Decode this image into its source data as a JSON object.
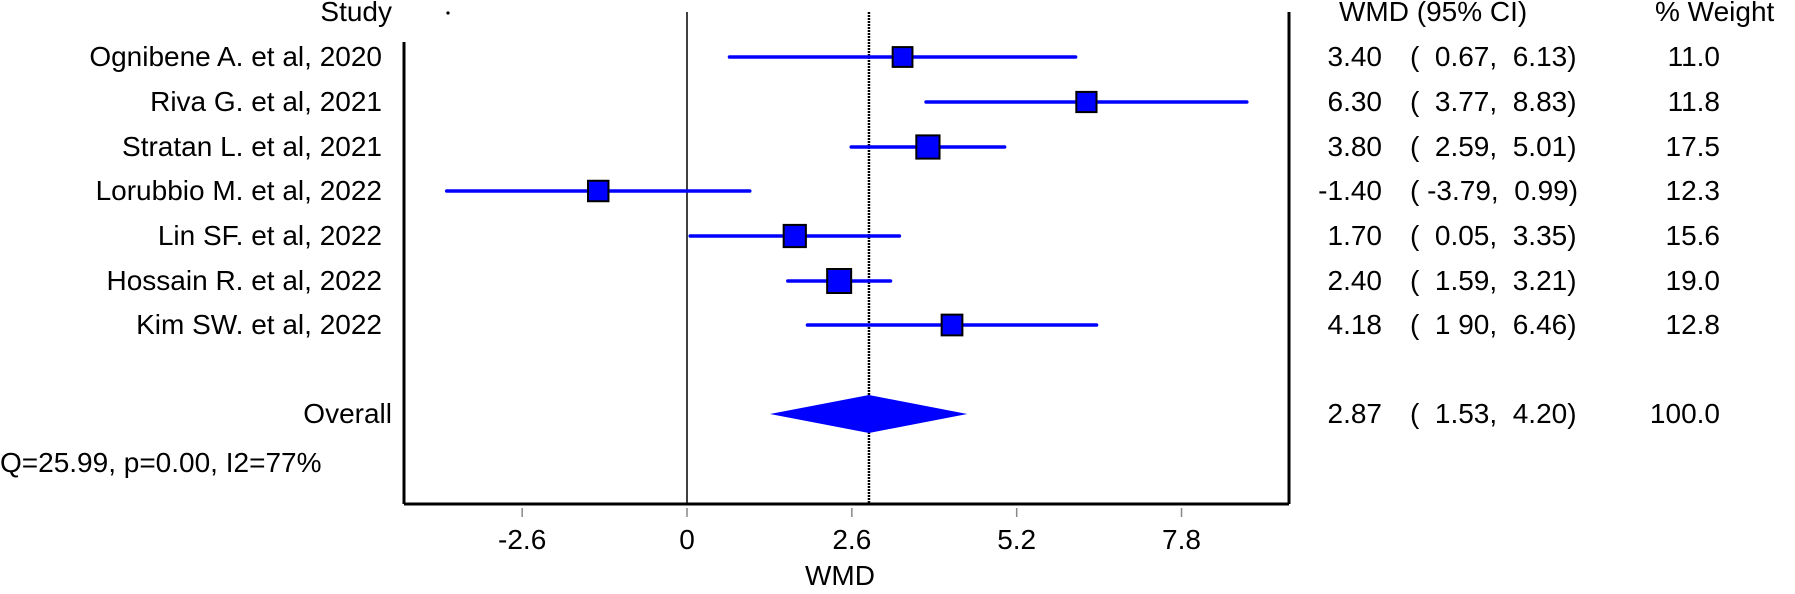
{
  "chart_data": {
    "type": "forest",
    "title": "",
    "xlabel": "WMD",
    "ylabel": "",
    "xlim": [
      -3.9,
      9.1
    ],
    "xticks": [
      -2.6,
      0,
      2.6,
      5.2,
      7.8
    ],
    "xtick_labels": [
      "-2.6",
      "0",
      "2.6",
      "5.2",
      "7.8"
    ],
    "null_line": 0,
    "overall_line": 2.87,
    "columns": {
      "study": "Study",
      "effect": "WMD (95% CI)",
      "weight": "% Weight"
    },
    "studies": [
      {
        "name": "Ognibene A. et al, 2020",
        "wmd": 3.4,
        "lo": 0.67,
        "hi": 6.13,
        "weight": 11.0,
        "wmd_text": "3.40",
        "ci_text": "(  0.67,  6.13)",
        "weight_text": "11.0"
      },
      {
        "name": "Riva G. et al, 2021",
        "wmd": 6.3,
        "lo": 3.77,
        "hi": 8.83,
        "weight": 11.8,
        "wmd_text": "6.30",
        "ci_text": "(  3.77,  8.83)",
        "weight_text": "11.8"
      },
      {
        "name": "Stratan L. et al, 2021",
        "wmd": 3.8,
        "lo": 2.59,
        "hi": 5.01,
        "weight": 17.5,
        "wmd_text": "3.80",
        "ci_text": "(  2.59,  5.01)",
        "weight_text": "17.5"
      },
      {
        "name": "Lorubbio M. et al, 2022",
        "wmd": -1.4,
        "lo": -3.79,
        "hi": 0.99,
        "weight": 12.3,
        "wmd_text": "-1.40",
        "ci_text": "( -3.79,  0.99)",
        "weight_text": "12.3"
      },
      {
        "name": "Lin SF. et al, 2022",
        "wmd": 1.7,
        "lo": 0.05,
        "hi": 3.35,
        "weight": 15.6,
        "wmd_text": "1.70",
        "ci_text": "(  0.05,  3.35)",
        "weight_text": "15.6"
      },
      {
        "name": "Hossain R. et al, 2022",
        "wmd": 2.4,
        "lo": 1.59,
        "hi": 3.21,
        "weight": 19.0,
        "wmd_text": "2.40",
        "ci_text": "(  1.59,  3.21)",
        "weight_text": "19.0"
      },
      {
        "name": "Kim SW. et al, 2022",
        "wmd": 4.18,
        "lo": 1.9,
        "hi": 6.46,
        "weight": 12.8,
        "wmd_text": "4.18",
        "ci_text": "(  1 90,  6.46)",
        "weight_text": "12.8"
      }
    ],
    "overall": {
      "name": "Overall",
      "wmd": 2.87,
      "lo": 1.53,
      "hi": 4.2,
      "weight": 100.0,
      "wmd_text": "2.87",
      "ci_text": "(  1.53,  4.20)",
      "weight_text": "100.0"
    },
    "heterogeneity": "Q=25.99, p=0.00, I2=77%",
    "colors": {
      "marker": "#0000ff",
      "ci_line": "#0000ff",
      "axis": "#000000"
    }
  }
}
